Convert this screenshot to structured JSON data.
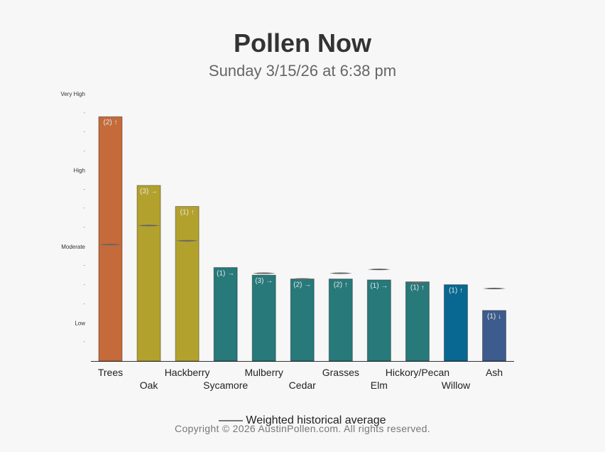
{
  "header": {
    "title": "Pollen Now",
    "subtitle": "Sunday 3/15/26 at 6:38 pm"
  },
  "legend": {
    "label": "Weighted historical average"
  },
  "footer": {
    "copyright": "Copyright © 2026 AustinPollen.com.  All rights reserved."
  },
  "chart_data": {
    "type": "bar",
    "y_level_labels": [
      {
        "label": "Low",
        "value": 2
      },
      {
        "label": "Moderate",
        "value": 6
      },
      {
        "label": "High",
        "value": 10
      },
      {
        "label": "Very High",
        "value": 14
      }
    ],
    "ylim": [
      0,
      14
    ],
    "grid": false,
    "legend_position": "bottom",
    "categories": [
      "Trees",
      "Oak",
      "Hackberry",
      "Sycamore",
      "Mulberry",
      "Cedar",
      "Grasses",
      "Elm",
      "Hickory/Pecan",
      "Willow",
      "Ash"
    ],
    "values": [
      12.8,
      9.2,
      8.1,
      4.9,
      4.5,
      4.3,
      4.3,
      4.25,
      4.15,
      4.0,
      2.65
    ],
    "historical_average": [
      6.1,
      7.1,
      6.3,
      null,
      4.6,
      4.3,
      4.6,
      4.8,
      4.1,
      null,
      3.8
    ],
    "annotations": [
      "(2) ↑",
      "(3) →",
      "(1) ↑",
      "(1) →",
      "(3) →",
      "(2) →",
      "(2) ↑",
      "(1) →",
      "(1) ↑",
      "(1) ↑",
      "(1) ↓"
    ],
    "colors": [
      "#c46a3b",
      "#b3a12e",
      "#b3a12e",
      "#27797a",
      "#27797a",
      "#27797a",
      "#27797a",
      "#27797a",
      "#27797a",
      "#086891",
      "#3d5c8d"
    ]
  }
}
